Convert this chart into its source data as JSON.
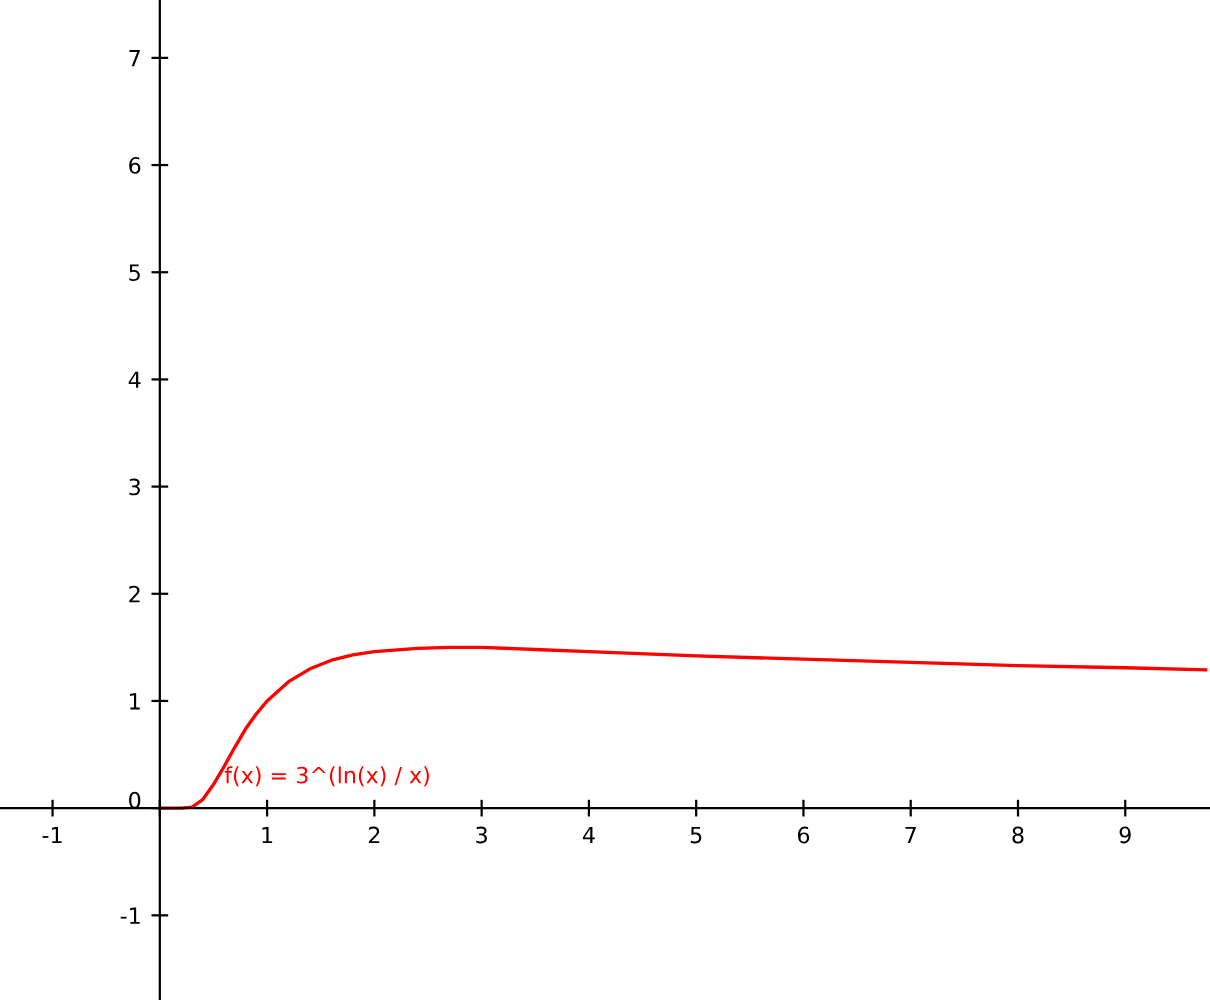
{
  "chart_data": {
    "type": "line",
    "x": [
      0,
      0.1,
      0.2,
      0.3,
      0.4,
      0.5,
      0.6,
      0.7,
      0.8,
      0.9,
      1,
      1.2,
      1.4,
      1.6,
      1.8,
      2,
      2.4,
      2.7,
      3,
      3.5,
      4,
      5,
      6,
      7,
      8,
      9,
      9.75
    ],
    "series": [
      {
        "color": "#ff0000",
        "values": [
          0,
          0,
          0,
          0.01,
          0.08,
          0.22,
          0.39,
          0.57,
          0.74,
          0.88,
          1,
          1.18,
          1.3,
          1.38,
          1.43,
          1.46,
          1.49,
          1.5,
          1.5,
          1.48,
          1.46,
          1.42,
          1.39,
          1.36,
          1.33,
          1.31,
          1.29
        ]
      }
    ],
    "annotations": [
      {
        "text": "f(x) = 3^(ln(x) / x)",
        "x": 0.6,
        "y": 0.39
      }
    ],
    "xlim": [
      -1.49,
      9.79
    ],
    "ylim": [
      -1.79,
      7.54
    ],
    "xticks": [
      -1,
      {
        "value": 0,
        "label": null
      },
      1,
      2,
      3,
      4,
      5,
      6,
      7,
      8,
      9
    ],
    "yticks": [
      -1,
      0,
      1,
      2,
      3,
      4,
      5,
      6,
      7
    ],
    "grid": false,
    "legend": false,
    "marker": "none",
    "line_style": "solid"
  }
}
